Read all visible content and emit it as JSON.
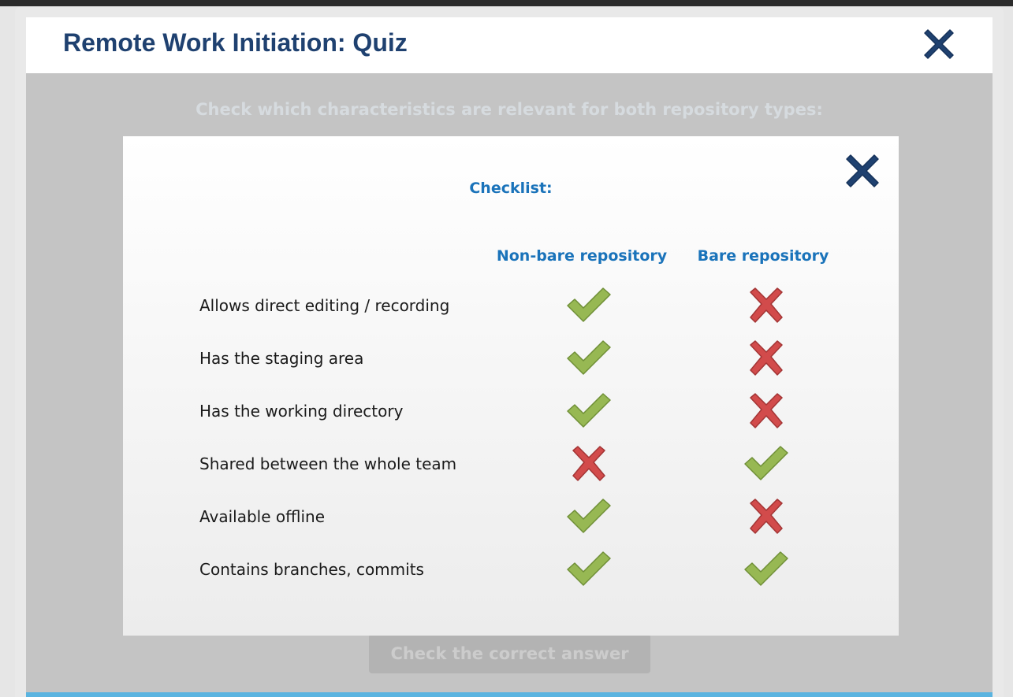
{
  "window": {
    "title": "Remote Work Initiation: Quiz",
    "close_icon": "close-icon"
  },
  "quiz": {
    "question": "Check which characteristics are relevant for both repository types:",
    "check_button_label": "Check the correct answer"
  },
  "modal": {
    "title": "Checklist:",
    "close_icon": "close-icon",
    "columns": [
      "Non-bare repository",
      "Bare repository"
    ],
    "rows": [
      {
        "label": "Allows direct editing / recording",
        "nonbare": "check",
        "bare": "cross"
      },
      {
        "label": "Has the staging area",
        "nonbare": "check",
        "bare": "cross"
      },
      {
        "label": "Has the working directory",
        "nonbare": "check",
        "bare": "cross"
      },
      {
        "label": "Shared between the whole team",
        "nonbare": "cross",
        "bare": "check"
      },
      {
        "label": "Available offline",
        "nonbare": "check",
        "bare": "cross"
      },
      {
        "label": "Contains branches, commits",
        "nonbare": "check",
        "bare": "check"
      }
    ]
  },
  "colors": {
    "title": "#1f4170",
    "accent_blue": "#1a73ba",
    "check_green": "#97b853",
    "cross_red": "#d24b4b",
    "close_x": "#1f4170"
  }
}
